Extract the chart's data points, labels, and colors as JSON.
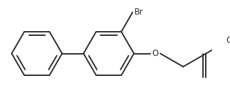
{
  "background_color": "#ffffff",
  "line_color": "#2a2a2a",
  "line_width": 1.4,
  "label_Br": "Br",
  "label_O1": "O",
  "label_O2": "O",
  "br_fontsize": 8.5,
  "o_fontsize": 8.5,
  "ring_r": 0.36
}
